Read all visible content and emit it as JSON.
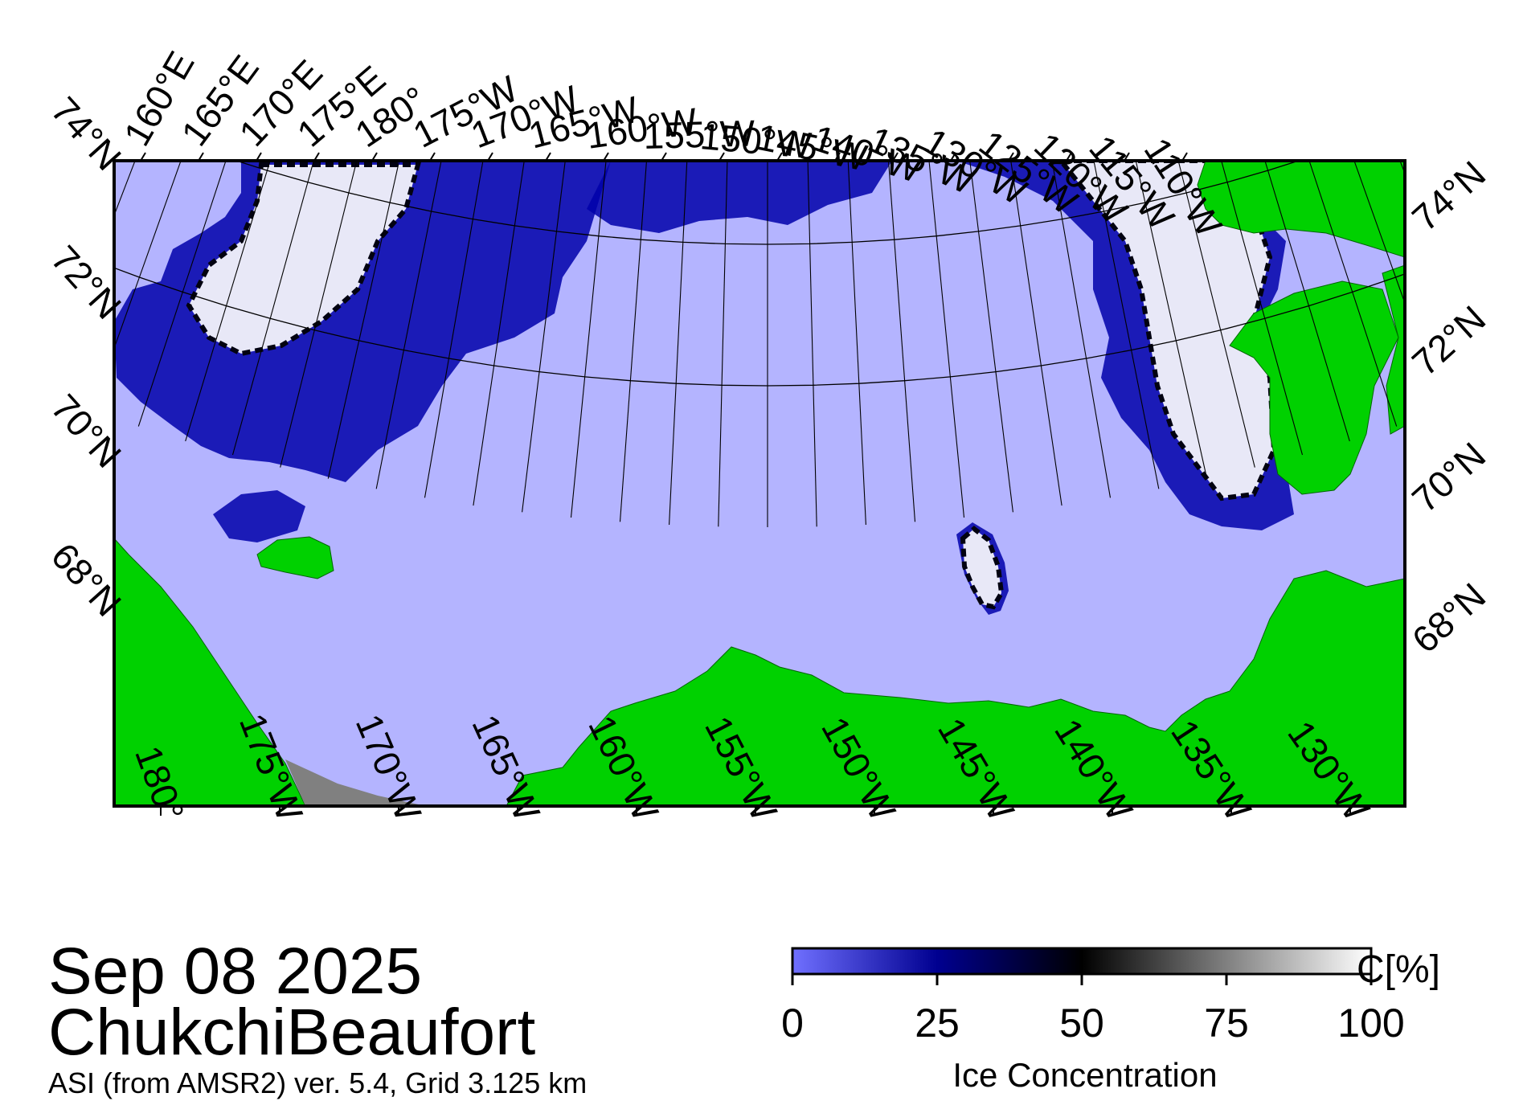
{
  "map": {
    "date": "Sep 08 2025",
    "region": "ChukchiBeaufort",
    "source": "ASI (from AMSR2) ver. 5.4,  Grid 3.125 km",
    "top_lon_labels": [
      "160°E",
      "165°E",
      "170°E",
      "175°E",
      "180°",
      "175°W",
      "170°W",
      "165°W",
      "160°W",
      "155°W",
      "150°W",
      "145°W",
      "140°W",
      "135°W",
      "130°W",
      "125°W",
      "120°W",
      "115°W",
      "110°W"
    ],
    "bottom_lon_labels": [
      "180°",
      "175°W",
      "170°W",
      "165°W",
      "160°W",
      "155°W",
      "150°W",
      "145°W",
      "140°W",
      "135°W",
      "130°W"
    ],
    "left_lat_labels": [
      "74°N",
      "72°N",
      "70°N",
      "68°N"
    ],
    "right_lat_labels": [
      "74°N",
      "72°N",
      "70°N",
      "68°N"
    ],
    "colors": {
      "open_water": "#b4b4ff",
      "land": "#00d100",
      "no_data": "#808080",
      "graticule": "#000000",
      "ice_low": "#0000aa",
      "ice_mid": "#000000",
      "ice_high": "#ffffff"
    }
  },
  "colorbar": {
    "title": "Ice Concentration",
    "unit": "C[%]",
    "ticks": [
      "0",
      "25",
      "50",
      "75",
      "100"
    ],
    "range": [
      0,
      100
    ],
    "stops": [
      {
        "value": 0,
        "color": "#7070ff"
      },
      {
        "value": 25,
        "color": "#000090"
      },
      {
        "value": 50,
        "color": "#000000"
      },
      {
        "value": 75,
        "color": "#808080"
      },
      {
        "value": 100,
        "color": "#ffffff"
      }
    ]
  }
}
